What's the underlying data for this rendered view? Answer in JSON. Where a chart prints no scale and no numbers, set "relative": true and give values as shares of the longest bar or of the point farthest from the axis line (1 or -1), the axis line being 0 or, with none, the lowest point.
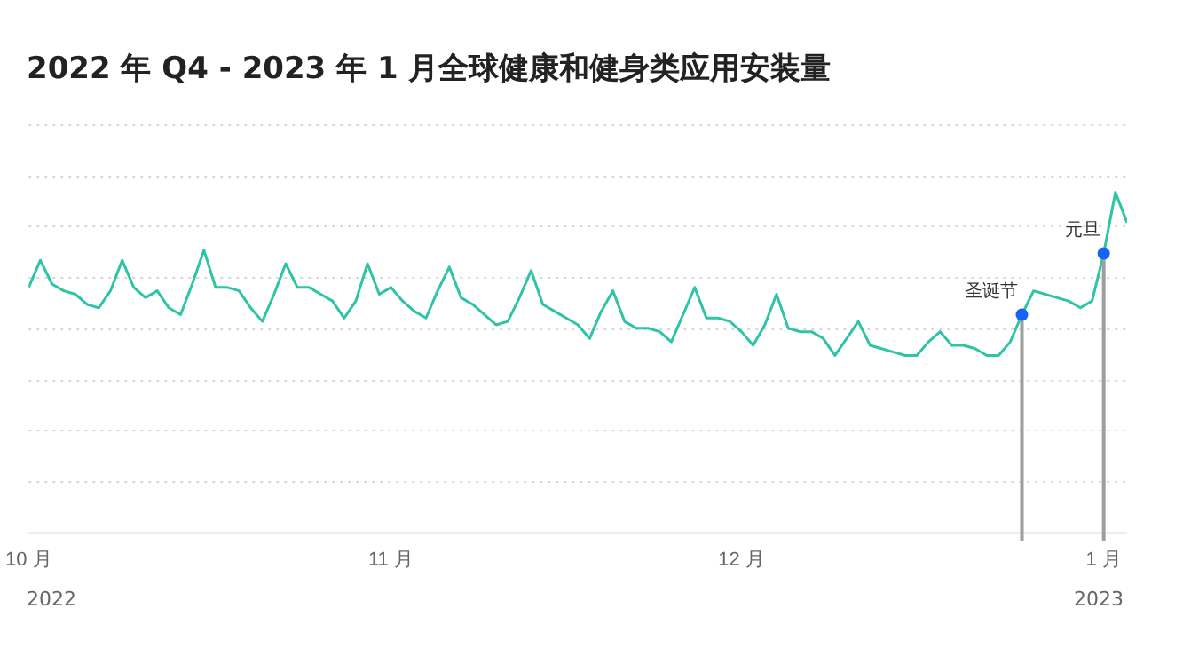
{
  "chart_data": {
    "type": "line",
    "title": "2022 年 Q4 - 2023 年 1 月全球健康和健身类应用安装量",
    "relative": true,
    "grid": "y",
    "legend": false,
    "marker": "none",
    "line_style": "solid",
    "xlim": [
      "2022-10-01",
      "2023-01-03"
    ],
    "xticks": [
      {
        "value": "2022-10-01",
        "label": "10 月"
      },
      {
        "value": "2022-11-01",
        "label": "11 月"
      },
      {
        "value": "2022-12-01",
        "label": "12 月"
      },
      {
        "value": "2023-01-01",
        "label": "1 月"
      }
    ],
    "annotations": [
      "2022",
      "2023"
    ],
    "ref_lines": [
      {
        "axis": "x",
        "value": "2022-12-25",
        "label": "圣诞节",
        "color": "#9e9e9e"
      },
      {
        "axis": "x",
        "value": "2023-01-01",
        "label": "元旦",
        "color": "#9e9e9e"
      }
    ],
    "x": [
      "2022-10-01",
      "2022-10-02",
      "2022-10-03",
      "2022-10-04",
      "2022-10-05",
      "2022-10-06",
      "2022-10-07",
      "2022-10-08",
      "2022-10-09",
      "2022-10-10",
      "2022-10-11",
      "2022-10-12",
      "2022-10-13",
      "2022-10-14",
      "2022-10-15",
      "2022-10-16",
      "2022-10-17",
      "2022-10-18",
      "2022-10-19",
      "2022-10-20",
      "2022-10-21",
      "2022-10-22",
      "2022-10-23",
      "2022-10-24",
      "2022-10-25",
      "2022-10-26",
      "2022-10-27",
      "2022-10-28",
      "2022-10-29",
      "2022-10-30",
      "2022-10-31",
      "2022-11-01",
      "2022-11-02",
      "2022-11-03",
      "2022-11-04",
      "2022-11-05",
      "2022-11-06",
      "2022-11-07",
      "2022-11-08",
      "2022-11-09",
      "2022-11-10",
      "2022-11-11",
      "2022-11-12",
      "2022-11-13",
      "2022-11-14",
      "2022-11-15",
      "2022-11-16",
      "2022-11-17",
      "2022-11-18",
      "2022-11-19",
      "2022-11-20",
      "2022-11-21",
      "2022-11-22",
      "2022-11-23",
      "2022-11-24",
      "2022-11-25",
      "2022-11-26",
      "2022-11-27",
      "2022-11-28",
      "2022-11-29",
      "2022-11-30",
      "2022-12-01",
      "2022-12-02",
      "2022-12-03",
      "2022-12-04",
      "2022-12-05",
      "2022-12-06",
      "2022-12-07",
      "2022-12-08",
      "2022-12-09",
      "2022-12-10",
      "2022-12-11",
      "2022-12-12",
      "2022-12-13",
      "2022-12-14",
      "2022-12-15",
      "2022-12-16",
      "2022-12-17",
      "2022-12-18",
      "2022-12-19",
      "2022-12-20",
      "2022-12-21",
      "2022-12-22",
      "2022-12-23",
      "2022-12-24",
      "2022-12-25",
      "2022-12-26",
      "2022-12-27",
      "2022-12-28",
      "2022-12-29",
      "2022-12-30",
      "2022-12-31",
      "2023-01-01",
      "2023-01-02",
      "2023-01-03"
    ],
    "series": [
      {
        "color": "#2ec4a5",
        "values": [
          0.72,
          0.8,
          0.73,
          0.71,
          0.7,
          0.67,
          0.66,
          0.71,
          0.8,
          0.72,
          0.69,
          0.71,
          0.66,
          0.64,
          0.73,
          0.83,
          0.72,
          0.72,
          0.71,
          0.66,
          0.62,
          0.7,
          0.79,
          0.72,
          0.72,
          0.7,
          0.68,
          0.63,
          0.68,
          0.79,
          0.7,
          0.72,
          0.68,
          0.65,
          0.63,
          0.71,
          0.78,
          0.69,
          0.67,
          0.64,
          0.61,
          0.62,
          0.69,
          0.77,
          0.67,
          0.65,
          0.63,
          0.61,
          0.57,
          0.65,
          0.71,
          0.62,
          0.6,
          0.6,
          0.59,
          0.56,
          0.64,
          0.72,
          0.63,
          0.63,
          0.62,
          0.59,
          0.55,
          0.61,
          0.7,
          0.6,
          0.59,
          0.59,
          0.57,
          0.52,
          0.57,
          0.62,
          0.55,
          0.54,
          0.53,
          0.52,
          0.52,
          0.56,
          0.59,
          0.55,
          0.55,
          0.54,
          0.52,
          0.52,
          0.56,
          0.64,
          0.71,
          0.7,
          0.69,
          0.68,
          0.66,
          0.68,
          0.82,
          1,
          0.91
        ]
      }
    ]
  }
}
